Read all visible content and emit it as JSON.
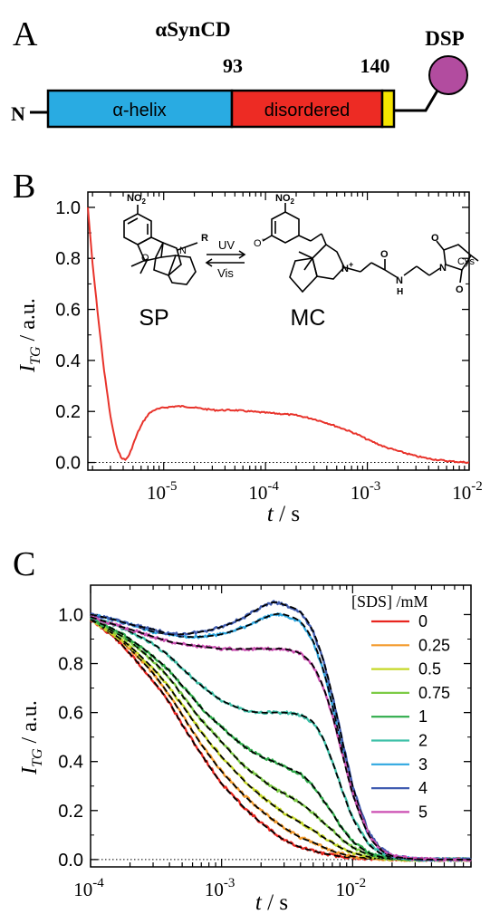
{
  "panelA": {
    "letter": "A",
    "title": "αSynCD",
    "n_label": "N",
    "pos_93": "93",
    "pos_140": "140",
    "helix_label": "α-helix",
    "disordered_label": "disordered",
    "dsp_label": "DSP",
    "colors": {
      "helix": "#29abe2",
      "disordered": "#ed2b24",
      "tag": "#f5e400",
      "dsp": "#b24c9f"
    }
  },
  "panelB": {
    "letter": "B",
    "uv": "UV",
    "vis": "Vis",
    "sp": "SP",
    "mc": "MC",
    "no2": "NO",
    "no2_sub": "2",
    "o_minus": "O",
    "r": "R",
    "n": "N",
    "n_plus": "N",
    "h": "H",
    "o": "O",
    "cys": "Cys",
    "minus": "−",
    "plus": "+"
  },
  "panelC": {
    "letter": "C",
    "legend_title": "[SDS] /mM"
  },
  "chart_data": [
    {
      "type": "line",
      "panel": "B",
      "xlabel": "t / s",
      "ylabel": "ITG / a.u.",
      "xscale": "log",
      "xlim": [
        1.8e-06,
        0.01
      ],
      "ylim": [
        -0.03,
        1.06
      ],
      "yticks": [
        0.0,
        0.2,
        0.4,
        0.6,
        0.8,
        1.0
      ],
      "ytick_labels": [
        "0.0",
        "0.2",
        "0.4",
        "0.6",
        "0.8",
        "1.0"
      ],
      "xtick_labels": [
        {
          "base": "10",
          "exp": "-5"
        },
        {
          "base": "10",
          "exp": "-4"
        },
        {
          "base": "10",
          "exp": "-3"
        },
        {
          "base": "10",
          "exp": "-2"
        }
      ],
      "color": "#e8332b",
      "zero_line": "dotted",
      "series": [
        {
          "x": [
            1.8e-06,
            2e-06,
            2.3e-06,
            2.6e-06,
            3e-06,
            3.4e-06,
            3.8e-06,
            4.2e-06,
            4.6e-06,
            5e-06,
            5.6e-06,
            6.3e-06,
            7.1e-06,
            8e-06,
            1e-05,
            1.3e-05,
            1.6e-05,
            2e-05,
            2.5e-05,
            3.2e-05,
            4e-05,
            5e-05,
            7e-05,
            0.0001,
            0.00015,
            0.0002,
            0.0003,
            0.0004,
            0.0006,
            0.0008,
            0.001,
            0.0015,
            0.002,
            0.003,
            0.004,
            0.006,
            0.008,
            0.01
          ],
          "y": [
            1.0,
            0.78,
            0.55,
            0.36,
            0.18,
            0.07,
            0.02,
            0.01,
            0.03,
            0.07,
            0.12,
            0.16,
            0.19,
            0.205,
            0.215,
            0.22,
            0.22,
            0.215,
            0.21,
            0.205,
            0.205,
            0.205,
            0.2,
            0.195,
            0.19,
            0.185,
            0.17,
            0.155,
            0.13,
            0.11,
            0.09,
            0.06,
            0.045,
            0.025,
            0.015,
            0.006,
            0.002,
            0.0
          ]
        }
      ]
    },
    {
      "type": "line",
      "panel": "C",
      "xlabel": "t / s",
      "ylabel": "ITG / a.u.",
      "xscale": "log",
      "xlim": [
        0.0001,
        0.08
      ],
      "ylim": [
        -0.03,
        1.12
      ],
      "yticks": [
        0.0,
        0.2,
        0.4,
        0.6,
        0.8,
        1.0
      ],
      "ytick_labels": [
        "0.0",
        "0.2",
        "0.4",
        "0.6",
        "0.8",
        "1.0"
      ],
      "xtick_labels": [
        {
          "base": "10",
          "exp": "-4"
        },
        {
          "base": "10",
          "exp": "-3"
        },
        {
          "base": "10",
          "exp": "-2"
        }
      ],
      "fit_style": "black dashed",
      "legend_title": "[SDS] /mM",
      "legend_position": "top-right",
      "x": [
        0.0001,
        0.00015,
        0.0002,
        0.0003,
        0.0004,
        0.0005,
        0.0007,
        0.001,
        0.0015,
        0.002,
        0.0025,
        0.003,
        0.004,
        0.005,
        0.006,
        0.007,
        0.008,
        0.01,
        0.013,
        0.016,
        0.02,
        0.03,
        0.05,
        0.08
      ],
      "series": [
        {
          "name": "0",
          "color": "#e8251f",
          "values": [
            0.98,
            0.91,
            0.84,
            0.73,
            0.64,
            0.55,
            0.43,
            0.31,
            0.21,
            0.15,
            0.11,
            0.08,
            0.05,
            0.035,
            0.025,
            0.018,
            0.013,
            0.008,
            0.004,
            0.002,
            0.001,
            0.0,
            0.0,
            0.0
          ]
        },
        {
          "name": "0.25",
          "color": "#f39a2b",
          "values": [
            0.98,
            0.92,
            0.86,
            0.76,
            0.67,
            0.59,
            0.47,
            0.36,
            0.26,
            0.2,
            0.16,
            0.13,
            0.09,
            0.07,
            0.05,
            0.035,
            0.025,
            0.013,
            0.006,
            0.003,
            0.001,
            0.0,
            0.0,
            0.0
          ]
        },
        {
          "name": "0.5",
          "color": "#c5d827",
          "values": [
            0.98,
            0.92,
            0.87,
            0.78,
            0.7,
            0.63,
            0.52,
            0.42,
            0.32,
            0.26,
            0.22,
            0.19,
            0.15,
            0.12,
            0.09,
            0.07,
            0.05,
            0.028,
            0.012,
            0.005,
            0.002,
            0.0,
            0.0,
            0.0
          ]
        },
        {
          "name": "0.75",
          "color": "#7ccb45",
          "values": [
            0.98,
            0.93,
            0.89,
            0.81,
            0.74,
            0.67,
            0.57,
            0.48,
            0.38,
            0.33,
            0.29,
            0.27,
            0.23,
            0.19,
            0.15,
            0.12,
            0.09,
            0.05,
            0.022,
            0.009,
            0.003,
            0.0,
            0.0,
            0.0
          ]
        },
        {
          "name": "1",
          "color": "#2eab4a",
          "values": [
            0.98,
            0.94,
            0.9,
            0.83,
            0.77,
            0.71,
            0.62,
            0.54,
            0.46,
            0.42,
            0.4,
            0.38,
            0.35,
            0.3,
            0.24,
            0.19,
            0.14,
            0.075,
            0.03,
            0.012,
            0.004,
            0.0,
            0.0,
            0.0
          ]
        },
        {
          "name": "2",
          "color": "#3dc0a8",
          "values": [
            0.99,
            0.96,
            0.93,
            0.88,
            0.83,
            0.78,
            0.71,
            0.65,
            0.61,
            0.6,
            0.6,
            0.6,
            0.59,
            0.56,
            0.49,
            0.4,
            0.31,
            0.17,
            0.07,
            0.028,
            0.01,
            0.001,
            0.0,
            0.0
          ]
        },
        {
          "name": "3",
          "color": "#2ea7e0",
          "values": [
            1.0,
            0.98,
            0.96,
            0.93,
            0.92,
            0.91,
            0.91,
            0.92,
            0.95,
            0.98,
            1.0,
            1.0,
            0.97,
            0.89,
            0.77,
            0.63,
            0.49,
            0.27,
            0.11,
            0.045,
            0.015,
            0.002,
            0.0,
            0.0
          ]
        },
        {
          "name": "4",
          "color": "#3f5bb0",
          "values": [
            1.0,
            0.98,
            0.96,
            0.94,
            0.92,
            0.92,
            0.93,
            0.95,
            0.99,
            1.03,
            1.05,
            1.04,
            1.01,
            0.93,
            0.81,
            0.67,
            0.53,
            0.3,
            0.12,
            0.05,
            0.017,
            0.002,
            0.0,
            0.0
          ]
        },
        {
          "name": "5",
          "color": "#cc4fb3",
          "values": [
            0.99,
            0.96,
            0.94,
            0.91,
            0.89,
            0.88,
            0.87,
            0.86,
            0.86,
            0.86,
            0.86,
            0.86,
            0.84,
            0.79,
            0.7,
            0.59,
            0.47,
            0.27,
            0.11,
            0.045,
            0.015,
            0.002,
            0.0,
            0.0
          ]
        }
      ]
    }
  ]
}
